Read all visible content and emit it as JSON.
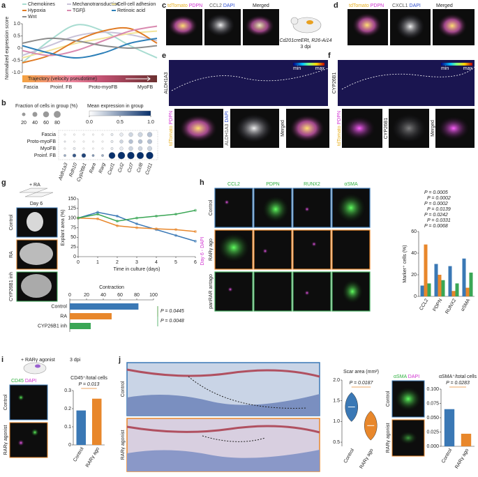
{
  "panels": {
    "letters": [
      "a",
      "b",
      "c",
      "d",
      "e",
      "f",
      "g",
      "h",
      "i",
      "j"
    ],
    "c": {
      "a1": "tdTomato",
      "a2": "PDPN",
      "b1": "CCL2",
      "b2": "DAPI",
      "m": "Merged",
      "mouse": "Cd201creERt, R26-Ai14",
      "time": "3 dpi"
    },
    "d": {
      "a1": "tdTomato",
      "a2": "PDPN",
      "b1": "CXCL1",
      "b2": "DAPI",
      "m": "Merged"
    },
    "e": {
      "marker": "ALDH1A3",
      "min": "min",
      "max": "max",
      "a1": "tdTomato",
      "a2": "PDPN",
      "b1": "ALDH1A3",
      "b2": "DAPI",
      "m": "Merged"
    },
    "f": {
      "marker": "CYP26B1",
      "min": "min",
      "max": "max",
      "a1": "tdTomato",
      "a2": "PDPN",
      "b1": "CYP26B1",
      "m": "Merged"
    },
    "g": {
      "treat": "+ RA",
      "day": "Day 6",
      "rows": [
        "Control",
        "RA",
        "CYP26B1 inh"
      ]
    },
    "h": {
      "cols": [
        "CCL2",
        "PDPN",
        "RUNX2",
        "αSMA"
      ],
      "rows": [
        "Control",
        "RARγ ago",
        "panRAR antago"
      ],
      "side": "Day 6 - DAPI"
    },
    "i": {
      "treat": "+ RARγ agonist",
      "time": "3 dpi",
      "s1": "CD45",
      "s2": "DAPI",
      "rows": [
        "Control",
        "RARγ agonist"
      ]
    },
    "j": {
      "rows": [
        "Control",
        "RARγ agonist"
      ],
      "s1": "αSMA",
      "s2": "DAPI",
      "rows2": [
        "Control",
        "RARγ agonist"
      ]
    }
  },
  "chart_data": [
    {
      "type": "line",
      "ylabel": "Normalized expression score",
      "xlabel": "Trajectory (velocity pseudotime)",
      "stages": [
        "Fascia",
        "Proinf. FB",
        "Proto-myoFB",
        "MyoFB"
      ],
      "x": [
        0,
        0.2,
        0.4,
        0.6,
        0.8,
        1
      ],
      "xlim": [
        0,
        1
      ],
      "ylim": [
        -1,
        1
      ],
      "yticks": [
        {
          "value": -1,
          "label": "-1.0"
        },
        -0.5,
        0,
        0.5,
        {
          "value": 1,
          "label": "1.0"
        }
      ],
      "series": [
        {
          "name": "Chemokines",
          "color": "#a8dcd1",
          "values": [
            -0.6,
            0.3,
            0.95,
            0.7,
            0.1,
            -0.4
          ]
        },
        {
          "name": "Mechanotransduction",
          "color": "#c9c3d9",
          "values": [
            -0.3,
            0.1,
            0.5,
            0.65,
            0.55,
            0.3
          ]
        },
        {
          "name": "Cell-cell adhesion",
          "color": "#f2e49b",
          "values": [
            -0.4,
            -0.1,
            0.2,
            0.4,
            0.6,
            0.7
          ]
        },
        {
          "name": "Hypoxia",
          "color": "#e07b24",
          "values": [
            -0.6,
            -0.3,
            0.3,
            0.7,
            0.8,
            0.2
          ]
        },
        {
          "name": "TGFβ",
          "color": "#d98ab0",
          "values": [
            -0.1,
            -0.3,
            -0.1,
            0.3,
            0.7,
            0.9
          ]
        },
        {
          "name": "Retinoic acid",
          "color": "#2c7fb8",
          "values": [
            0.1,
            -0.2,
            -0.4,
            -0.2,
            0.2,
            0.4
          ]
        },
        {
          "name": "Wnt",
          "color": "#8c8c8c",
          "values": [
            0.2,
            0.4,
            0.3,
            0.1,
            0,
            0.1
          ]
        }
      ]
    },
    {
      "type": "dotplot",
      "size_title": "Fraction of cells in group (%)",
      "size_ticks": [
        20,
        40,
        60,
        80
      ],
      "color_title": "Mean expression in group",
      "color_ticks": [
        {
          "value": 0,
          "label": "0.0"
        },
        0.5,
        {
          "value": 1,
          "label": "1.0"
        }
      ],
      "rows": [
        "Fascia",
        "Proto-myoFB",
        "MyoFB",
        "Proinf. FB"
      ],
      "genes": [
        "Aldh1a3",
        "Rdh10",
        "Cyp26b1",
        "Rara",
        "Rarg",
        "Cxcl1",
        "Ccl2",
        "Ccl7",
        "Ccl8",
        "Ccl11"
      ],
      "fraction": [
        [
          5,
          5,
          5,
          5,
          5,
          10,
          20,
          30,
          35,
          40
        ],
        [
          5,
          5,
          5,
          5,
          5,
          10,
          20,
          30,
          30,
          35
        ],
        [
          5,
          10,
          5,
          5,
          5,
          10,
          20,
          30,
          30,
          35
        ],
        [
          10,
          20,
          30,
          10,
          10,
          70,
          85,
          85,
          80,
          85
        ]
      ],
      "expression": [
        [
          0,
          0,
          0,
          0,
          0,
          0.1,
          0.1,
          0.2,
          0.2,
          0.3
        ],
        [
          0.1,
          0,
          0,
          0,
          0,
          0.1,
          0.2,
          0.3,
          0.3,
          0.3
        ],
        [
          0,
          0.1,
          0,
          0,
          0,
          0.1,
          0.1,
          0.2,
          0.2,
          0.2
        ],
        [
          0.4,
          0.8,
          0.9,
          0.5,
          0.4,
          1,
          1,
          1,
          1,
          1
        ]
      ]
    },
    {
      "type": "line",
      "ylabel": "Explant area (%)",
      "xlabel": "Time in culture (days)",
      "markers": true,
      "x": [
        0,
        1,
        2,
        3,
        4,
        5,
        6
      ],
      "xlim": [
        0,
        6
      ],
      "xticks": [
        0,
        1,
        2,
        3,
        4,
        5,
        6
      ],
      "ylim": [
        0,
        150
      ],
      "yticks": [
        0,
        25,
        50,
        75,
        100,
        125,
        150
      ],
      "series": [
        {
          "color": "#3a78b5",
          "values": [
            100,
            115,
            105,
            85,
            70,
            55,
            40
          ]
        },
        {
          "color": "#e8872b",
          "values": [
            100,
            98,
            80,
            75,
            72,
            70,
            65
          ]
        },
        {
          "color": "#3aa655",
          "values": [
            100,
            110,
            92,
            100,
            105,
            110,
            120
          ]
        }
      ]
    },
    {
      "type": "hbar",
      "title": "Contraction",
      "categories": [
        "Control",
        "RA",
        "CYP26B1 inh"
      ],
      "values": [
        82,
        50,
        25
      ],
      "colors": [
        "#3a78b5",
        "#e8872b",
        "#3aa655"
      ],
      "xlim": [
        0,
        100
      ],
      "xticks": [
        0,
        20,
        40,
        60,
        80,
        100
      ],
      "annotations": [
        "P = 0.0445",
        "P = 0.0048"
      ]
    },
    {
      "type": "bar",
      "ylabel": "Marker⁺ cells (%)",
      "categories": [
        "CCL2",
        "PDPN",
        "RUNX2",
        "αSMA"
      ],
      "series": [
        {
          "color": "#3a78b5",
          "values": [
            10,
            30,
            28,
            35
          ]
        },
        {
          "color": "#e8872b",
          "values": [
            48,
            20,
            5,
            8
          ]
        },
        {
          "color": "#3aa655",
          "values": [
            12,
            15,
            12,
            22
          ]
        }
      ],
      "ylim": [
        0,
        60
      ],
      "yticks": [
        0,
        20,
        40,
        60
      ],
      "annotations": [
        "P = 0.0005",
        "P = 0.0002",
        "P = 0.0002",
        "P = 0.0139",
        "P = 0.0242",
        "P = 0.0331",
        "P = 0.0068"
      ]
    },
    {
      "type": "bar",
      "title": "CD45⁺/total cells",
      "categories": [
        "Control",
        "RARγ ago"
      ],
      "values": [
        0.19,
        0.255
      ],
      "colors": [
        "#3a78b5",
        "#e8872b"
      ],
      "ylim": [
        0,
        0.3
      ],
      "yticks": [
        0,
        0.1,
        0.2,
        0.3
      ],
      "annotations": [
        "P = 0.013"
      ]
    },
    {
      "type": "violin",
      "title": "Scar area (mm²)",
      "categories": [
        "Control",
        "RARγ ago"
      ],
      "values": [
        1.35,
        0.9
      ],
      "colors": [
        "#3a78b5",
        "#e8872b"
      ],
      "ylim": [
        0.4,
        2
      ],
      "yticks": [
        0.5,
        {
          "value": 1,
          "label": "1.0"
        },
        1.5,
        {
          "value": 2,
          "label": "2.0"
        }
      ],
      "annotations": [
        "P = 0.0187"
      ]
    },
    {
      "type": "bar",
      "title": "αSMA⁺/total cells",
      "categories": [
        "Control",
        "RARγ ago"
      ],
      "values": [
        0.065,
        0.022
      ],
      "colors": [
        "#3a78b5",
        "#e8872b"
      ],
      "ylim": [
        0,
        0.1
      ],
      "yticks": [
        {
          "value": 0,
          "label": "0.000"
        },
        {
          "value": 0.025,
          "label": "0.025"
        },
        {
          "value": 0.05,
          "label": "0.050"
        },
        {
          "value": 0.075,
          "label": "0.075"
        },
        {
          "value": 0.1,
          "label": "0.100"
        }
      ],
      "annotations": [
        "P = 0.0283"
      ]
    }
  ]
}
